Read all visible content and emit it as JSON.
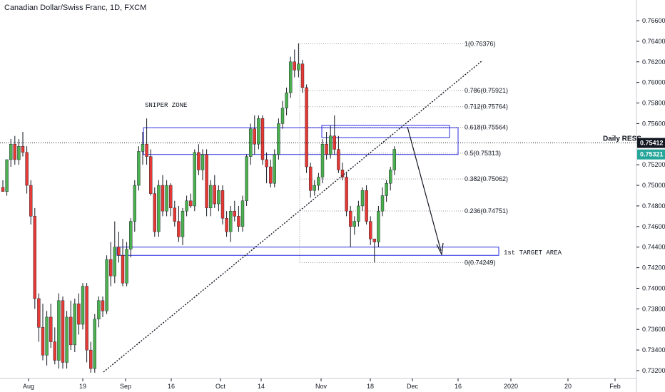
{
  "title": "Canadian Dollar/Swiss Franc, 1D, FXCM",
  "chart_data": {
    "type": "candlestick",
    "title": "Canadian Dollar/Swiss Franc, 1D, FXCM",
    "ylim": [
      0.7318,
      0.767
    ],
    "x_ticks": [
      "Aug",
      "19",
      "Sep",
      "16",
      "Oct",
      "14",
      "Nov",
      "18",
      "Dec",
      "16",
      "2020",
      "20",
      "Feb"
    ],
    "y_ticks": [
      "0.76600",
      "0.76400",
      "0.76200",
      "0.76000",
      "0.75800",
      "0.75600",
      "0.75200",
      "0.75000",
      "0.74800",
      "0.74600",
      "0.74400",
      "0.74200",
      "0.74000",
      "0.73800",
      "0.73600",
      "0.73400",
      "0.73200"
    ],
    "candles": [
      {
        "o": 0.7498,
        "h": 0.7505,
        "l": 0.7494,
        "c": 0.7494
      },
      {
        "o": 0.7494,
        "h": 0.7525,
        "l": 0.749,
        "c": 0.7525
      },
      {
        "o": 0.7525,
        "h": 0.7545,
        "l": 0.7518,
        "c": 0.754
      },
      {
        "o": 0.754,
        "h": 0.7548,
        "l": 0.752,
        "c": 0.7525
      },
      {
        "o": 0.7525,
        "h": 0.7545,
        "l": 0.752,
        "c": 0.7538
      },
      {
        "o": 0.7538,
        "h": 0.7552,
        "l": 0.7528,
        "c": 0.7532
      },
      {
        "o": 0.7532,
        "h": 0.7538,
        "l": 0.7492,
        "c": 0.75
      },
      {
        "o": 0.75,
        "h": 0.7505,
        "l": 0.7462,
        "c": 0.747
      },
      {
        "o": 0.747,
        "h": 0.7478,
        "l": 0.738,
        "c": 0.739
      },
      {
        "o": 0.739,
        "h": 0.7395,
        "l": 0.7348,
        "c": 0.7362
      },
      {
        "o": 0.7362,
        "h": 0.7385,
        "l": 0.733,
        "c": 0.7335
      },
      {
        "o": 0.7335,
        "h": 0.7378,
        "l": 0.7325,
        "c": 0.7372
      },
      {
        "o": 0.7372,
        "h": 0.7385,
        "l": 0.7342,
        "c": 0.7348
      },
      {
        "o": 0.7348,
        "h": 0.7362,
        "l": 0.7326,
        "c": 0.733
      },
      {
        "o": 0.733,
        "h": 0.7395,
        "l": 0.7322,
        "c": 0.7388
      },
      {
        "o": 0.7388,
        "h": 0.7392,
        "l": 0.7322,
        "c": 0.7328
      },
      {
        "o": 0.7328,
        "h": 0.7378,
        "l": 0.7322,
        "c": 0.7372
      },
      {
        "o": 0.7372,
        "h": 0.7388,
        "l": 0.734,
        "c": 0.7345
      },
      {
        "o": 0.7345,
        "h": 0.739,
        "l": 0.7338,
        "c": 0.7385
      },
      {
        "o": 0.7385,
        "h": 0.7395,
        "l": 0.7355,
        "c": 0.7365
      },
      {
        "o": 0.7365,
        "h": 0.7405,
        "l": 0.736,
        "c": 0.7402
      },
      {
        "o": 0.7402,
        "h": 0.7405,
        "l": 0.7328,
        "c": 0.734
      },
      {
        "o": 0.734,
        "h": 0.7348,
        "l": 0.7318,
        "c": 0.7322
      },
      {
        "o": 0.7322,
        "h": 0.7375,
        "l": 0.7318,
        "c": 0.737
      },
      {
        "o": 0.737,
        "h": 0.7392,
        "l": 0.7362,
        "c": 0.7388
      },
      {
        "o": 0.7388,
        "h": 0.7392,
        "l": 0.7372,
        "c": 0.7378
      },
      {
        "o": 0.7378,
        "h": 0.7432,
        "l": 0.7375,
        "c": 0.7428
      },
      {
        "o": 0.7428,
        "h": 0.7445,
        "l": 0.7402,
        "c": 0.7412
      },
      {
        "o": 0.7412,
        "h": 0.7465,
        "l": 0.7405,
        "c": 0.744
      },
      {
        "o": 0.744,
        "h": 0.7455,
        "l": 0.7425,
        "c": 0.7432
      },
      {
        "o": 0.7432,
        "h": 0.7448,
        "l": 0.7402,
        "c": 0.7405
      },
      {
        "o": 0.7405,
        "h": 0.7445,
        "l": 0.7402,
        "c": 0.7438
      },
      {
        "o": 0.7438,
        "h": 0.7468,
        "l": 0.743,
        "c": 0.7465
      },
      {
        "o": 0.7465,
        "h": 0.7505,
        "l": 0.7455,
        "c": 0.75
      },
      {
        "o": 0.75,
        "h": 0.7538,
        "l": 0.7495,
        "c": 0.7533
      },
      {
        "o": 0.7533,
        "h": 0.7552,
        "l": 0.752,
        "c": 0.754
      },
      {
        "o": 0.754,
        "h": 0.7565,
        "l": 0.752,
        "c": 0.7528
      },
      {
        "o": 0.7528,
        "h": 0.7535,
        "l": 0.749,
        "c": 0.7492
      },
      {
        "o": 0.7492,
        "h": 0.7498,
        "l": 0.745,
        "c": 0.7455
      },
      {
        "o": 0.7455,
        "h": 0.7505,
        "l": 0.745,
        "c": 0.75
      },
      {
        "o": 0.75,
        "h": 0.751,
        "l": 0.747,
        "c": 0.7475
      },
      {
        "o": 0.7475,
        "h": 0.7505,
        "l": 0.747,
        "c": 0.75
      },
      {
        "o": 0.75,
        "h": 0.7502,
        "l": 0.747,
        "c": 0.7478
      },
      {
        "o": 0.7478,
        "h": 0.7485,
        "l": 0.746,
        "c": 0.7465
      },
      {
        "o": 0.7465,
        "h": 0.748,
        "l": 0.7445,
        "c": 0.745
      },
      {
        "o": 0.745,
        "h": 0.7478,
        "l": 0.7442,
        "c": 0.7475
      },
      {
        "o": 0.7475,
        "h": 0.749,
        "l": 0.747,
        "c": 0.7485
      },
      {
        "o": 0.7485,
        "h": 0.7492,
        "l": 0.7478,
        "c": 0.748
      },
      {
        "o": 0.748,
        "h": 0.7535,
        "l": 0.7475,
        "c": 0.7532
      },
      {
        "o": 0.7532,
        "h": 0.754,
        "l": 0.751,
        "c": 0.7515
      },
      {
        "o": 0.7515,
        "h": 0.7535,
        "l": 0.7505,
        "c": 0.753
      },
      {
        "o": 0.753,
        "h": 0.7535,
        "l": 0.747,
        "c": 0.7478
      },
      {
        "o": 0.7478,
        "h": 0.7505,
        "l": 0.747,
        "c": 0.75
      },
      {
        "o": 0.75,
        "h": 0.751,
        "l": 0.7478,
        "c": 0.7482
      },
      {
        "o": 0.7482,
        "h": 0.75,
        "l": 0.7475,
        "c": 0.7495
      },
      {
        "o": 0.7495,
        "h": 0.75,
        "l": 0.7462,
        "c": 0.7468
      },
      {
        "o": 0.7468,
        "h": 0.7475,
        "l": 0.745,
        "c": 0.7455
      },
      {
        "o": 0.7455,
        "h": 0.748,
        "l": 0.7445,
        "c": 0.7475
      },
      {
        "o": 0.7475,
        "h": 0.7485,
        "l": 0.7465,
        "c": 0.747
      },
      {
        "o": 0.747,
        "h": 0.748,
        "l": 0.7455,
        "c": 0.746
      },
      {
        "o": 0.746,
        "h": 0.749,
        "l": 0.7455,
        "c": 0.7485
      },
      {
        "o": 0.7485,
        "h": 0.753,
        "l": 0.748,
        "c": 0.7528
      },
      {
        "o": 0.7528,
        "h": 0.756,
        "l": 0.752,
        "c": 0.7555
      },
      {
        "o": 0.7555,
        "h": 0.7568,
        "l": 0.753,
        "c": 0.754
      },
      {
        "o": 0.754,
        "h": 0.7568,
        "l": 0.7535,
        "c": 0.7565
      },
      {
        "o": 0.7565,
        "h": 0.7568,
        "l": 0.752,
        "c": 0.7525
      },
      {
        "o": 0.7525,
        "h": 0.7532,
        "l": 0.7502,
        "c": 0.7518
      },
      {
        "o": 0.7518,
        "h": 0.7525,
        "l": 0.7498,
        "c": 0.7502
      },
      {
        "o": 0.7502,
        "h": 0.7535,
        "l": 0.7498,
        "c": 0.753
      },
      {
        "o": 0.753,
        "h": 0.7565,
        "l": 0.7525,
        "c": 0.756
      },
      {
        "o": 0.756,
        "h": 0.7582,
        "l": 0.7555,
        "c": 0.7575
      },
      {
        "o": 0.7575,
        "h": 0.7595,
        "l": 0.7568,
        "c": 0.759
      },
      {
        "o": 0.759,
        "h": 0.7625,
        "l": 0.7585,
        "c": 0.762
      },
      {
        "o": 0.762,
        "h": 0.7632,
        "l": 0.7605,
        "c": 0.7612
      },
      {
        "o": 0.7612,
        "h": 0.7638,
        "l": 0.7605,
        "c": 0.7618
      },
      {
        "o": 0.7618,
        "h": 0.7622,
        "l": 0.759,
        "c": 0.7595
      },
      {
        "o": 0.7595,
        "h": 0.7598,
        "l": 0.7512,
        "c": 0.7518
      },
      {
        "o": 0.7518,
        "h": 0.7522,
        "l": 0.7488,
        "c": 0.7495
      },
      {
        "o": 0.7495,
        "h": 0.7505,
        "l": 0.749,
        "c": 0.75
      },
      {
        "o": 0.75,
        "h": 0.7512,
        "l": 0.7495,
        "c": 0.7508
      },
      {
        "o": 0.7508,
        "h": 0.7545,
        "l": 0.7502,
        "c": 0.754
      },
      {
        "o": 0.754,
        "h": 0.7552,
        "l": 0.7525,
        "c": 0.753
      },
      {
        "o": 0.753,
        "h": 0.7558,
        "l": 0.7526,
        "c": 0.7548
      },
      {
        "o": 0.7548,
        "h": 0.7568,
        "l": 0.753,
        "c": 0.7535
      },
      {
        "o": 0.7535,
        "h": 0.7548,
        "l": 0.7512,
        "c": 0.7515
      },
      {
        "o": 0.7515,
        "h": 0.7522,
        "l": 0.7505,
        "c": 0.7508
      },
      {
        "o": 0.7508,
        "h": 0.7512,
        "l": 0.747,
        "c": 0.7475
      },
      {
        "o": 0.7475,
        "h": 0.748,
        "l": 0.744,
        "c": 0.746
      },
      {
        "o": 0.746,
        "h": 0.747,
        "l": 0.7452,
        "c": 0.7465
      },
      {
        "o": 0.7465,
        "h": 0.7485,
        "l": 0.746,
        "c": 0.748
      },
      {
        "o": 0.748,
        "h": 0.7498,
        "l": 0.7475,
        "c": 0.7495
      },
      {
        "o": 0.7495,
        "h": 0.75,
        "l": 0.7462,
        "c": 0.7465
      },
      {
        "o": 0.7465,
        "h": 0.747,
        "l": 0.7442,
        "c": 0.7448
      },
      {
        "o": 0.7448,
        "h": 0.7448,
        "l": 0.7425,
        "c": 0.7445
      },
      {
        "o": 0.7445,
        "h": 0.748,
        "l": 0.744,
        "c": 0.7475
      },
      {
        "o": 0.7475,
        "h": 0.7498,
        "l": 0.747,
        "c": 0.749
      },
      {
        "o": 0.749,
        "h": 0.7505,
        "l": 0.7484,
        "c": 0.7502
      },
      {
        "o": 0.7502,
        "h": 0.7518,
        "l": 0.7495,
        "c": 0.7515
      },
      {
        "o": 0.7515,
        "h": 0.7538,
        "l": 0.751,
        "c": 0.7535
      }
    ],
    "fib_levels": [
      {
        "label": "1(0.76376)",
        "value": 0.76376
      },
      {
        "label": "0.786(0.75921)",
        "value": 0.75921
      },
      {
        "label": "0.712(0.75764)",
        "value": 0.75764
      },
      {
        "label": "0.618(0.75564)",
        "value": 0.75564
      },
      {
        "label": "0.5(0.75313)",
        "value": 0.75313
      },
      {
        "label": "0.382(0.75062)",
        "value": 0.75062
      },
      {
        "label": "0.236(0.74751)",
        "value": 0.74751
      },
      {
        "label": "0(0.74249)",
        "value": 0.74249
      }
    ],
    "horizontal_line": {
      "label": "Daily RESS",
      "value": 0.75412,
      "price_label": "0.75412"
    },
    "last_price": {
      "value": 0.75321,
      "price_label": "0.75321"
    },
    "zones": [
      {
        "label": "SNIPER ZONE",
        "low": 0.753,
        "high": 0.7556
      },
      {
        "label": "1st TARGET AREA",
        "low": 0.7432,
        "high": 0.744
      }
    ],
    "colors": {
      "up": "#26a69a",
      "down": "#ef5350",
      "up_body": "#4caf50",
      "down_body": "#e53935",
      "zone": "#2a2ee0",
      "last_label": "#26a69a",
      "ress_label": "#131722"
    }
  }
}
